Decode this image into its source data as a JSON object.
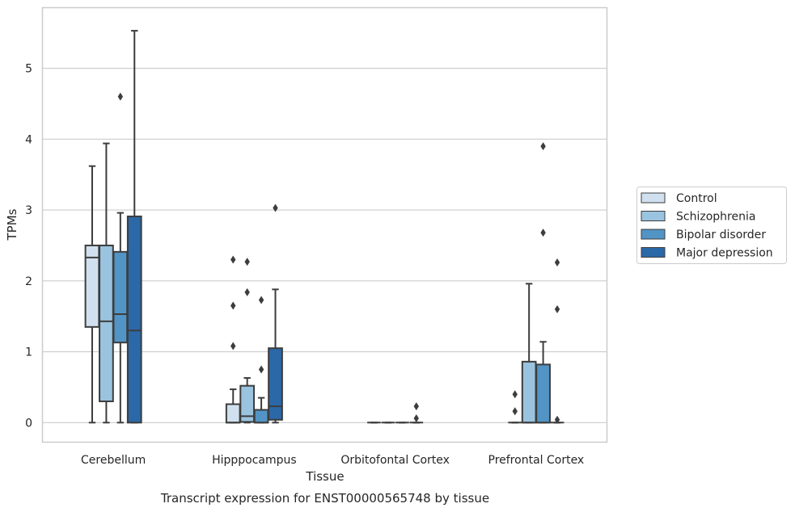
{
  "chart_data": {
    "type": "box",
    "caption": "Transcript expression for ENST00000565748 by tissue",
    "xlabel": "Tissue",
    "ylabel": "TPMs",
    "ylim": [
      -0.27,
      5.85
    ],
    "yticks": [
      0,
      1,
      2,
      3,
      4,
      5
    ],
    "categories": [
      "Cerebellum",
      "Hipppocampus",
      "Orbitofontal Cortex",
      "Prefrontal Cortex"
    ],
    "grid": "horizontal",
    "legend_position": "right",
    "series": [
      {
        "name": "Control",
        "color": "#d0e0ef",
        "boxes": [
          {
            "q1": 1.35,
            "median": 2.33,
            "q3": 2.5,
            "whisker_low": 0,
            "whisker_high": 3.62,
            "outliers": []
          },
          {
            "q1": 0,
            "median": 0,
            "q3": 0.26,
            "whisker_low": 0,
            "whisker_high": 0.47,
            "outliers": [
              1.08,
              1.65,
              2.3
            ]
          },
          {
            "q1": 0,
            "median": 0,
            "q3": 0,
            "whisker_low": 0,
            "whisker_high": 0,
            "outliers": []
          },
          {
            "q1": 0,
            "median": 0,
            "q3": 0,
            "whisker_low": 0,
            "whisker_high": 0,
            "outliers": [
              0.16,
              0.4
            ]
          }
        ]
      },
      {
        "name": "Schizophrenia",
        "color": "#9ac3df",
        "boxes": [
          {
            "q1": 0.3,
            "median": 1.43,
            "q3": 2.5,
            "whisker_low": 0,
            "whisker_high": 3.94,
            "outliers": []
          },
          {
            "q1": 0.01,
            "median": 0.09,
            "q3": 0.52,
            "whisker_low": 0,
            "whisker_high": 0.63,
            "outliers": [
              1.84,
              2.27
            ]
          },
          {
            "q1": 0,
            "median": 0,
            "q3": 0,
            "whisker_low": 0,
            "whisker_high": 0,
            "outliers": []
          },
          {
            "q1": 0,
            "median": 0,
            "q3": 0.86,
            "whisker_low": 0,
            "whisker_high": 1.96,
            "outliers": []
          }
        ]
      },
      {
        "name": "Bipolar disorder",
        "color": "#5294c5",
        "boxes": [
          {
            "q1": 1.13,
            "median": 1.53,
            "q3": 2.41,
            "whisker_low": 0,
            "whisker_high": 2.96,
            "outliers": [
              4.6
            ]
          },
          {
            "q1": 0,
            "median": 0,
            "q3": 0.18,
            "whisker_low": 0,
            "whisker_high": 0.35,
            "outliers": [
              0.75,
              1.73
            ]
          },
          {
            "q1": 0,
            "median": 0,
            "q3": 0,
            "whisker_low": 0,
            "whisker_high": 0,
            "outliers": []
          },
          {
            "q1": 0,
            "median": 0,
            "q3": 0.82,
            "whisker_low": 0,
            "whisker_high": 1.14,
            "outliers": [
              3.9,
              2.68
            ]
          }
        ]
      },
      {
        "name": "Major depression",
        "color": "#2b68a8",
        "boxes": [
          {
            "q1": 0,
            "median": 1.3,
            "q3": 2.91,
            "whisker_low": 0,
            "whisker_high": 5.53,
            "outliers": []
          },
          {
            "q1": 0.04,
            "median": 0.23,
            "q3": 1.05,
            "whisker_low": 0,
            "whisker_high": 1.88,
            "outliers": [
              3.03
            ]
          },
          {
            "q1": 0,
            "median": 0,
            "q3": 0,
            "whisker_low": 0,
            "whisker_high": 0,
            "outliers": [
              0.06,
              0.23
            ]
          },
          {
            "q1": 0,
            "median": 0,
            "q3": 0,
            "whisker_low": 0,
            "whisker_high": 0,
            "outliers": [
              0.04,
              1.6,
              2.26
            ]
          }
        ]
      }
    ]
  }
}
